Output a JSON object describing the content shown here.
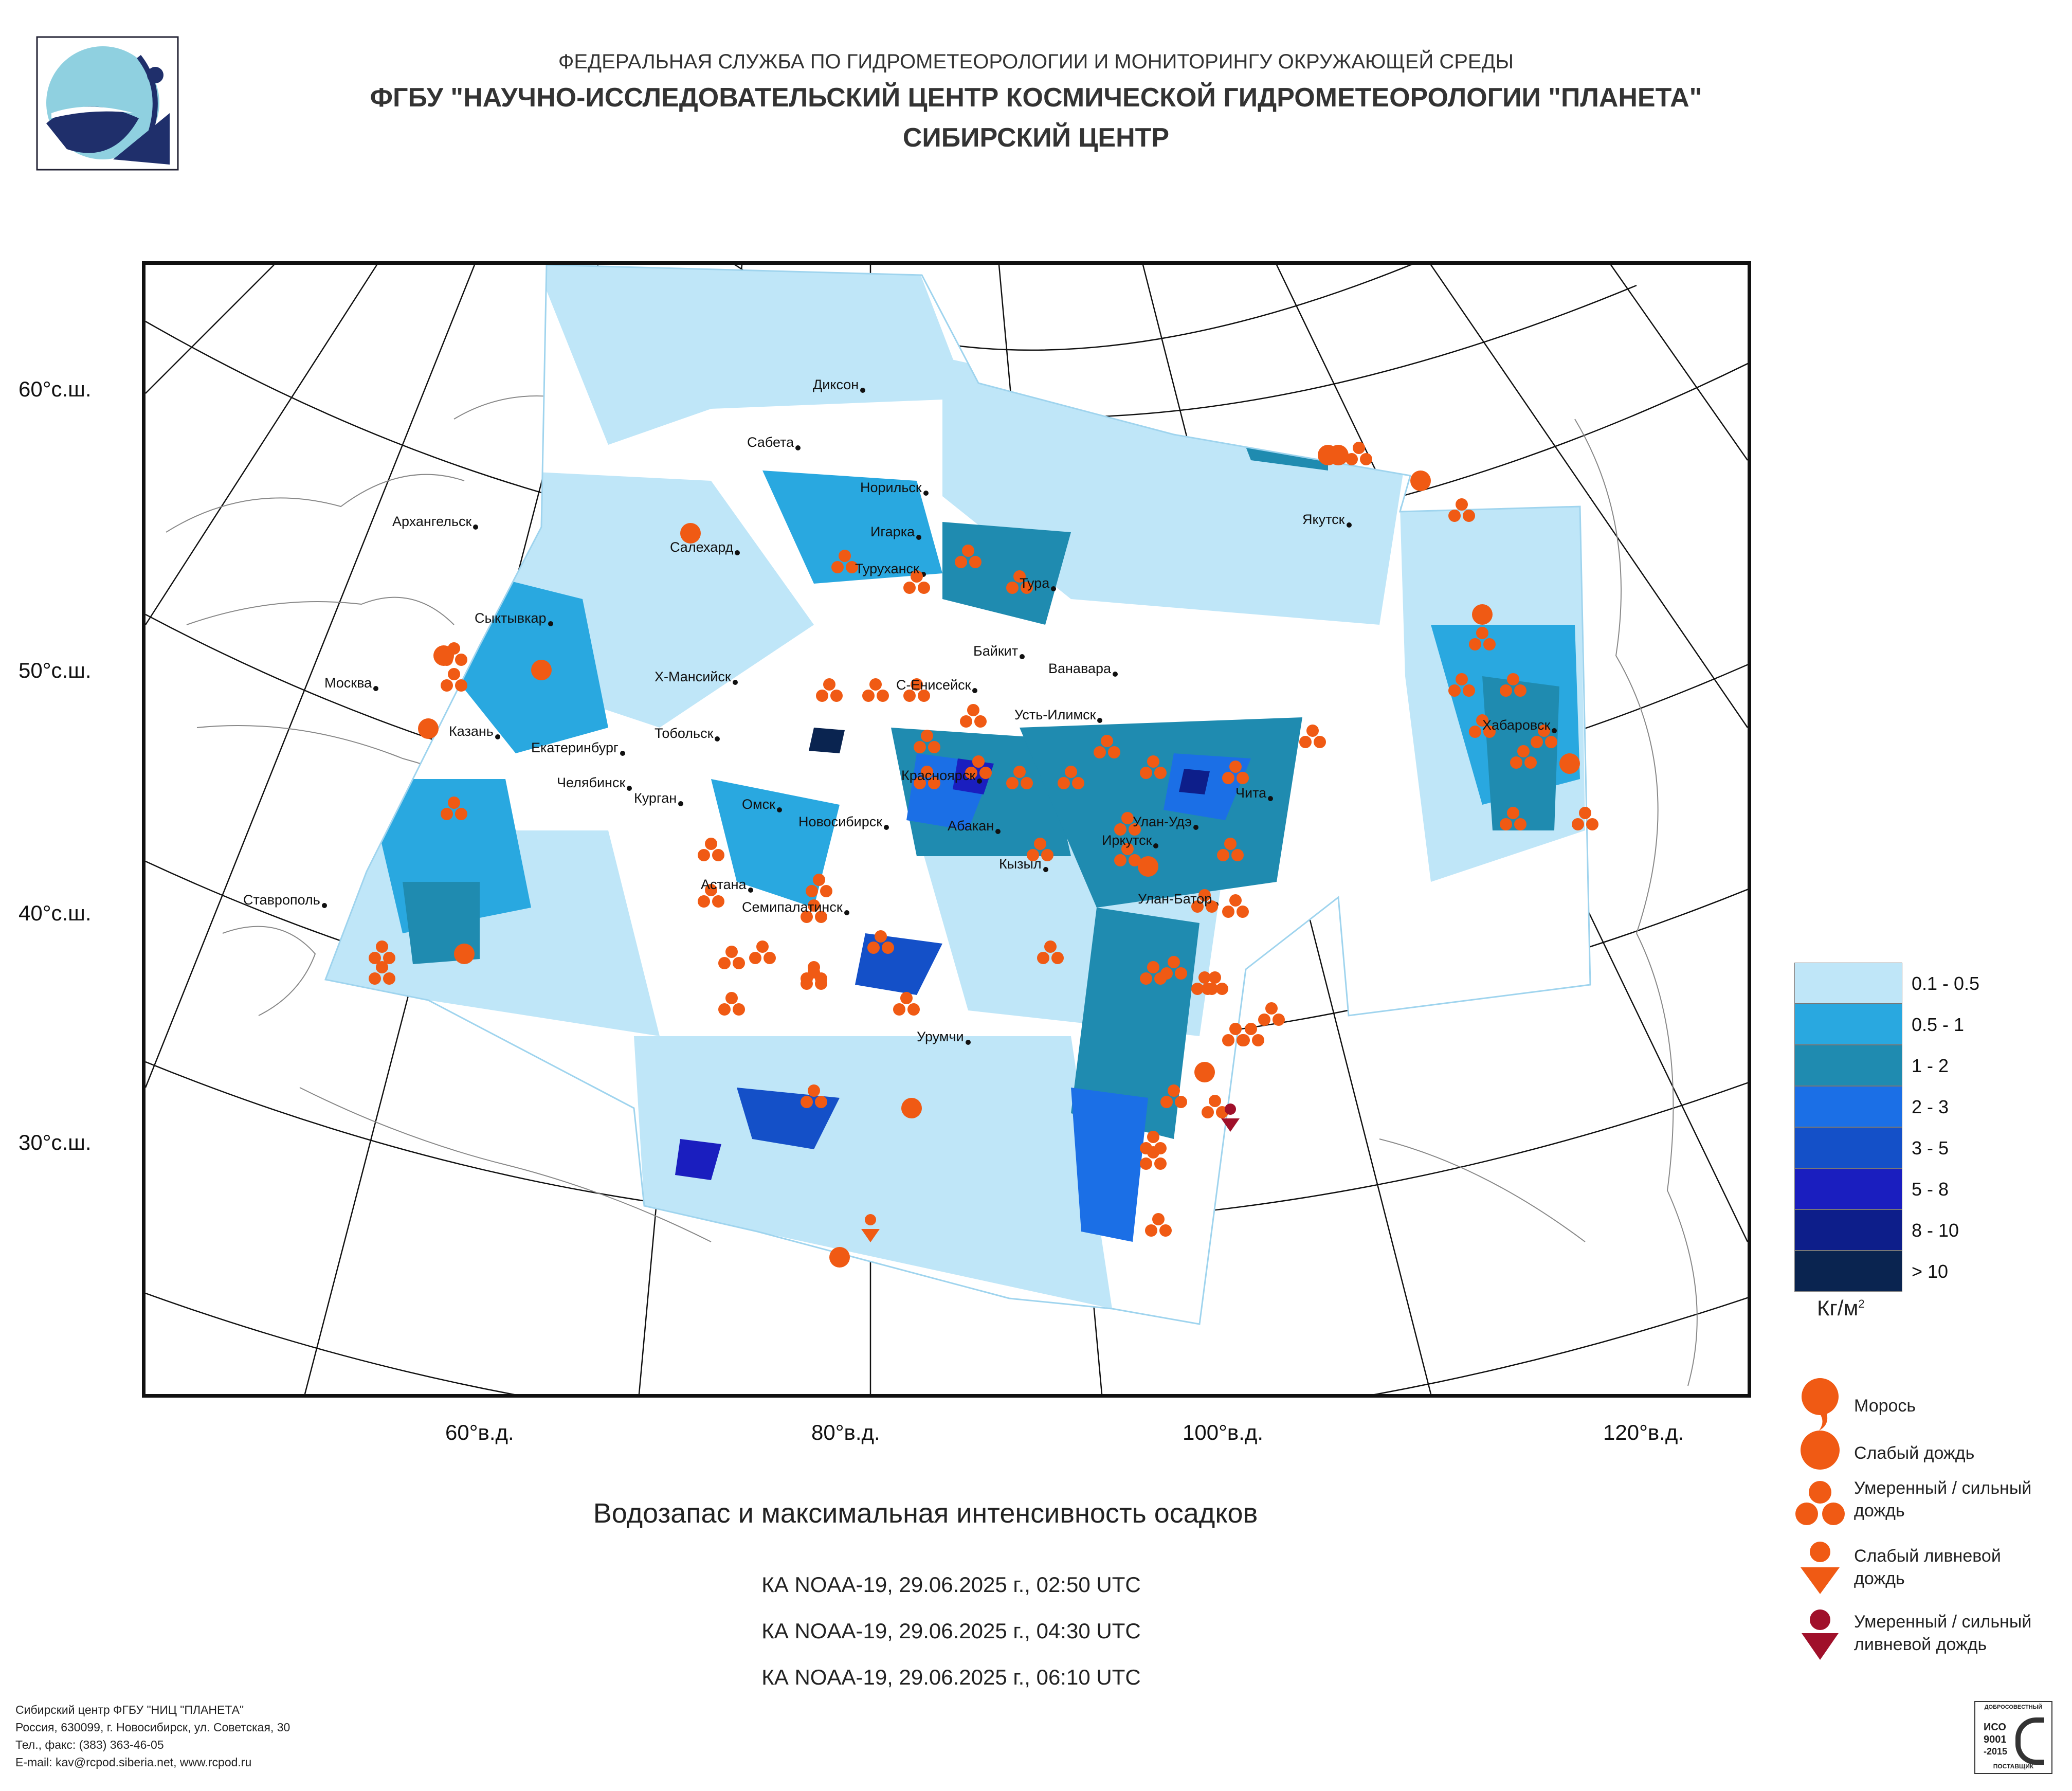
{
  "header": {
    "line1": "ФЕДЕРАЛЬНАЯ СЛУЖБА ПО ГИДРОМЕТЕОРОЛОГИИ И МОНИТОРИНГУ ОКРУЖАЮЩЕЙ СРЕДЫ",
    "line2": "ФГБУ \"НАУЧНО-ИССЛЕДОВАТЕЛЬСКИЙ ЦЕНТР КОСМИЧЕСКОЙ ГИДРОМЕТЕОРОЛОГИИ \"ПЛАНЕТА\"",
    "line3": "СИБИРСКИЙ ЦЕНТР"
  },
  "colors": {
    "l1": "#bfe6f8",
    "l2": "#29a8e0",
    "l3": "#1f8bb0",
    "l4": "#1b6fe6",
    "l5": "#1450c8",
    "l6": "#1a1ebf",
    "l7": "#0d1e8a",
    "l8": "#0a2450",
    "rain": "#f05a14",
    "shower_heavy": "#a0102a"
  },
  "map": {
    "lat_labels": [
      "60°с.ш.",
      "50°с.ш.",
      "40°с.ш.",
      "30°с.ш."
    ],
    "lon_labels": [
      "60°в.д.",
      "80°в.д.",
      "100°в.д.",
      "120°в.д."
    ],
    "cities": [
      "Диксон",
      "Сабета",
      "Норильск",
      "Якутск",
      "Игарка",
      "Архангельск",
      "Салехард",
      "Туруханск",
      "Тура",
      "Сыктывкар",
      "Байкит",
      "Ванавара",
      "Москва",
      "Х-Мансийск",
      "С-Енисейск",
      "Усть-Илимск",
      "Хабаровск",
      "Казань",
      "Екатеринбург",
      "Тобольск",
      "Красноярск",
      "Челябинск",
      "Курган",
      "Омск",
      "Новосибирск",
      "Чита",
      "Абакан",
      "Улан-Удэ",
      "Иркутск",
      "Кызыл",
      "Астана",
      "Улан-Батор",
      "Ставрополь",
      "Семипалатинск",
      "Урумчи"
    ]
  },
  "legend": {
    "classes": [
      "0.1 - 0.5",
      "0.5 - 1",
      "1 - 2",
      "2 - 3",
      "3 - 5",
      "5 - 8",
      "8 - 10",
      "> 10"
    ],
    "unit_main": "Кг/м",
    "unit_sup": "2",
    "symbols": [
      {
        "icon": "drizzle-icon",
        "label": "Морось"
      },
      {
        "icon": "light-rain-icon",
        "label": "Слабый дождь"
      },
      {
        "icon": "moderate-rain-icon",
        "label": "Умеренный / сильный дождь"
      },
      {
        "icon": "light-shower-icon",
        "label": "Слабый ливневой дождь"
      },
      {
        "icon": "heavy-shower-icon",
        "label": "Умеренный / сильный ливневой дождь"
      }
    ]
  },
  "title": "Водозапас и максимальная интенсивность осадков",
  "passes": [
    "КА NOAA-19, 29.06.2025 г., 02:50 UTC",
    "КА NOAA-19, 29.06.2025 г., 04:30 UTC",
    "КА NOAA-19, 29.06.2025 г., 06:10 UTC"
  ],
  "footer": [
    "Сибирский центр ФГБУ \"НИЦ \"ПЛАНЕТА\"",
    "Россия, 630099, г. Новосибирск, ул. Советская, 30",
    "Тел., факс: (383) 363-46-05",
    "E-mail: kav@rcpod.siberia.net, www.rcpod.ru"
  ],
  "iso_badge": {
    "top": "ДОБРОСОВЕСТНЫЙ",
    "l1": "ИСО",
    "l2": "9001",
    "l3": "-2015",
    "bottom": "ПОСТАВЩИК"
  }
}
